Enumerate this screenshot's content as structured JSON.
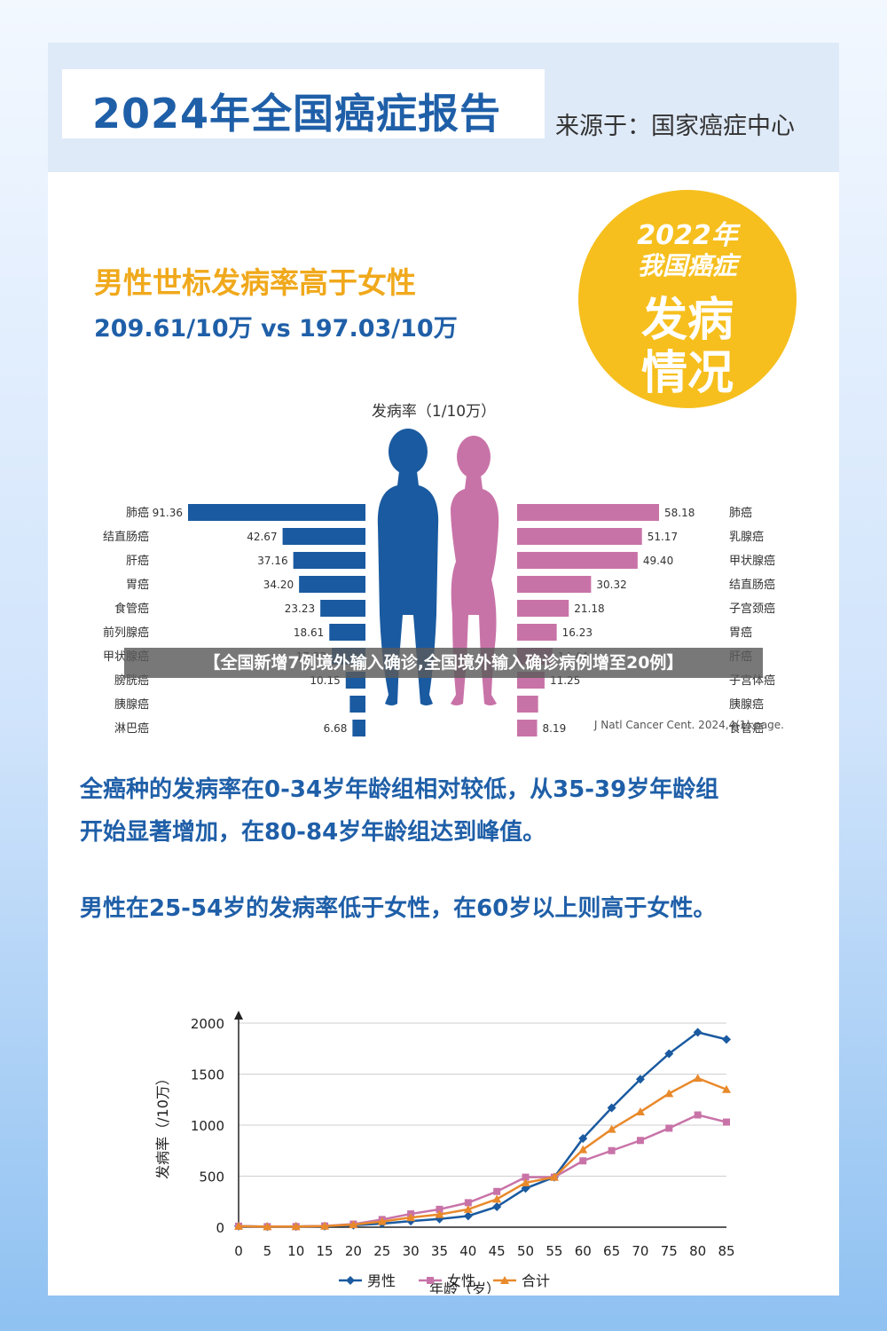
{
  "header": {
    "title": "2024年全国癌症报告",
    "source": "来源于：国家癌症中心"
  },
  "badge": {
    "line1": "2022年",
    "line2": "我国癌症",
    "line3": "发病",
    "line4": "情况"
  },
  "headline": "男性世标发病率高于女性",
  "subline": "209.61/10万 vs 197.03/10万",
  "paragraph1_line1": "全癌种的发病率在0-34岁年龄组相对较低，从35-39岁年龄组",
  "paragraph1_line2": "开始显著增加，在80-84岁年龄组达到峰值。",
  "paragraph2": "男性在25-54岁的发病率低于女性，在60岁以上则高于女性。",
  "overlay_banner": "【全国新增7例境外输入确诊,全国境外输入确诊病例增至20例】",
  "colors": {
    "male": "#1a5aa0",
    "female": "#c873a8",
    "total": "#e8892b",
    "title_blue": "#1f5fa8",
    "accent_yellow": "#f6bf1e"
  },
  "chart_data": [
    {
      "type": "bar",
      "orientation": "horizontal-butterfly",
      "title": "发病率（1/10万）",
      "footnote": "J Natl Cancer Cent. 2024,4(1):page.",
      "series": [
        {
          "name": "男性",
          "categories": [
            "肺癌",
            "结直肠癌",
            "肝癌",
            "胃癌",
            "食管癌",
            "前列腺癌",
            "甲状腺癌",
            "膀胱癌",
            "胰腺癌",
            "淋巴癌"
          ],
          "values": [
            91.36,
            42.67,
            37.16,
            34.2,
            23.23,
            18.61,
            17.32,
            10.15,
            8.05,
            6.68
          ],
          "labels": [
            "91.36",
            "42.67",
            "37.16",
            "34.20",
            "23.23",
            "18.61",
            "17.32",
            "10.15",
            "",
            "6.68"
          ]
        },
        {
          "name": "女性",
          "categories": [
            "肺癌",
            "乳腺癌",
            "甲状腺癌",
            "结直肠癌",
            "子宫颈癌",
            "胃癌",
            "肝癌",
            "子宫体癌",
            "胰腺癌",
            "食管癌"
          ],
          "values": [
            58.18,
            51.17,
            49.4,
            30.32,
            21.18,
            16.23,
            14.44,
            11.25,
            8.6,
            8.19
          ],
          "labels": [
            "58.18",
            "51.17",
            "49.40",
            "30.32",
            "21.18",
            "16.23",
            "14.44",
            "11.25",
            "",
            "8.19"
          ]
        }
      ]
    },
    {
      "type": "line",
      "xlabel": "年龄（岁）",
      "ylabel": "发病率（/10万）",
      "ylim": [
        0,
        2000
      ],
      "yticks": [
        0,
        500,
        1000,
        1500,
        2000
      ],
      "x": [
        0,
        5,
        10,
        15,
        20,
        25,
        30,
        35,
        40,
        45,
        50,
        55,
        60,
        65,
        70,
        75,
        80,
        85
      ],
      "series": [
        {
          "name": "男性",
          "values": [
            10,
            5,
            6,
            10,
            20,
            35,
            60,
            80,
            110,
            200,
            380,
            490,
            870,
            1170,
            1450,
            1700,
            1910,
            1840
          ]
        },
        {
          "name": "女性",
          "values": [
            10,
            5,
            6,
            12,
            30,
            75,
            130,
            175,
            240,
            350,
            490,
            490,
            650,
            750,
            850,
            970,
            1100,
            1030
          ]
        },
        {
          "name": "合计",
          "values": [
            10,
            5,
            6,
            11,
            25,
            55,
            95,
            125,
            175,
            275,
            435,
            490,
            760,
            960,
            1130,
            1310,
            1460,
            1350
          ]
        }
      ],
      "legend_position": "bottom"
    }
  ]
}
